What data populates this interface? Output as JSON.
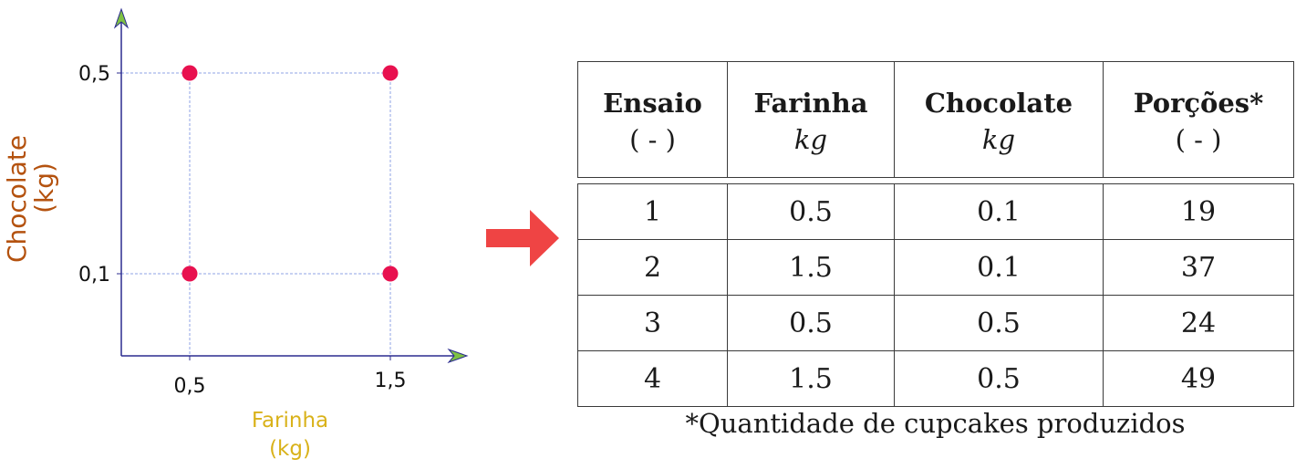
{
  "design_plot": {
    "x_axis_title": "Farinha",
    "x_axis_unit": "(kg)",
    "y_axis_title": "Chocolate",
    "y_axis_unit": "(kg)",
    "x_ticks": [
      "0,5",
      "1,5"
    ],
    "y_ticks": [
      "0,5",
      "0,1"
    ],
    "design_points": [
      {
        "farinha": 0.5,
        "chocolate": 0.5
      },
      {
        "farinha": 1.5,
        "chocolate": 0.5
      },
      {
        "farinha": 0.5,
        "chocolate": 0.1
      },
      {
        "farinha": 1.5,
        "chocolate": 0.1
      }
    ],
    "colors": {
      "point": "#e8114f",
      "axis": "#2b2b8f",
      "arrowhead": "#7fc242",
      "gridline": "#8fa3e6",
      "x_title": "#d9b21a",
      "y_title": "#b4520f"
    }
  },
  "arrow": {
    "color": "#ef4444",
    "icon": "right-arrow-icon"
  },
  "table": {
    "headers": [
      "Ensaio",
      "Farinha",
      "Chocolate",
      "Porções*"
    ],
    "units": [
      "( - )",
      "kg",
      "kg",
      "( - )"
    ],
    "rows": [
      [
        "1",
        "0.5",
        "0.1",
        "19"
      ],
      [
        "2",
        "1.5",
        "0.1",
        "37"
      ],
      [
        "3",
        "0.5",
        "0.5",
        "24"
      ],
      [
        "4",
        "1.5",
        "0.5",
        "49"
      ]
    ],
    "footnote": "*Quantidade de cupcakes produzidos"
  }
}
